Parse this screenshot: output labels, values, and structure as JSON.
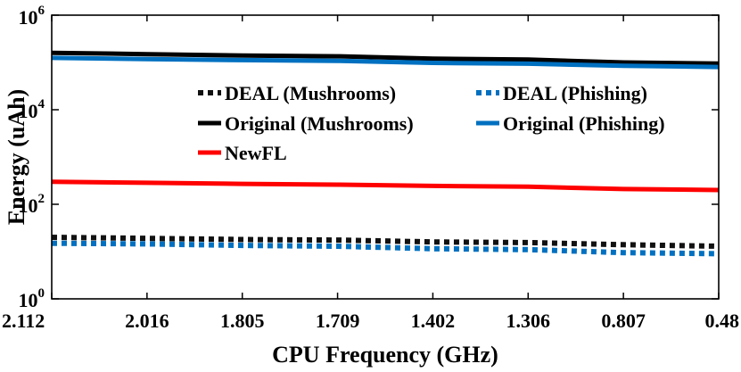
{
  "chart_data": {
    "type": "line",
    "title": "",
    "xlabel": "CPU Frequency (GHz)",
    "ylabel": "Energy (uAh)",
    "yscale": "log",
    "ylim_exponents": [
      0,
      6
    ],
    "y_ticks": [
      {
        "base": "10",
        "exp": "0"
      },
      {
        "base": "10",
        "exp": "2"
      },
      {
        "base": "10",
        "exp": "4"
      },
      {
        "base": "10",
        "exp": "6"
      }
    ],
    "categories": [
      "2.112",
      "2.016",
      "1.805",
      "1.709",
      "1.402",
      "1.306",
      "0.807",
      "0.48"
    ],
    "grid": false,
    "legend_position": "inside-upper",
    "series": [
      {
        "name": "DEAL (Mushrooms)",
        "color": "#111111",
        "style": "dotted",
        "values": [
          20,
          19,
          18,
          17.5,
          16,
          15.5,
          14,
          13
        ]
      },
      {
        "name": "DEAL (Phishing)",
        "color": "#0070c0",
        "style": "dotted",
        "values": [
          15,
          14.5,
          13.5,
          13,
          11.5,
          11,
          9.5,
          9
        ]
      },
      {
        "name": "Original (Mushrooms)",
        "color": "#000000",
        "style": "solid",
        "values": [
          160000,
          150000,
          140000,
          135000,
          120000,
          115000,
          100000,
          95000
        ]
      },
      {
        "name": "Original (Phishing)",
        "color": "#0070c0",
        "style": "solid",
        "values": [
          125000,
          118000,
          112000,
          108000,
          98000,
          94000,
          85000,
          80000
        ]
      },
      {
        "name": "NewFL",
        "color": "#ff0000",
        "style": "solid",
        "values": [
          300,
          285,
          270,
          260,
          245,
          235,
          210,
          200
        ]
      }
    ]
  }
}
